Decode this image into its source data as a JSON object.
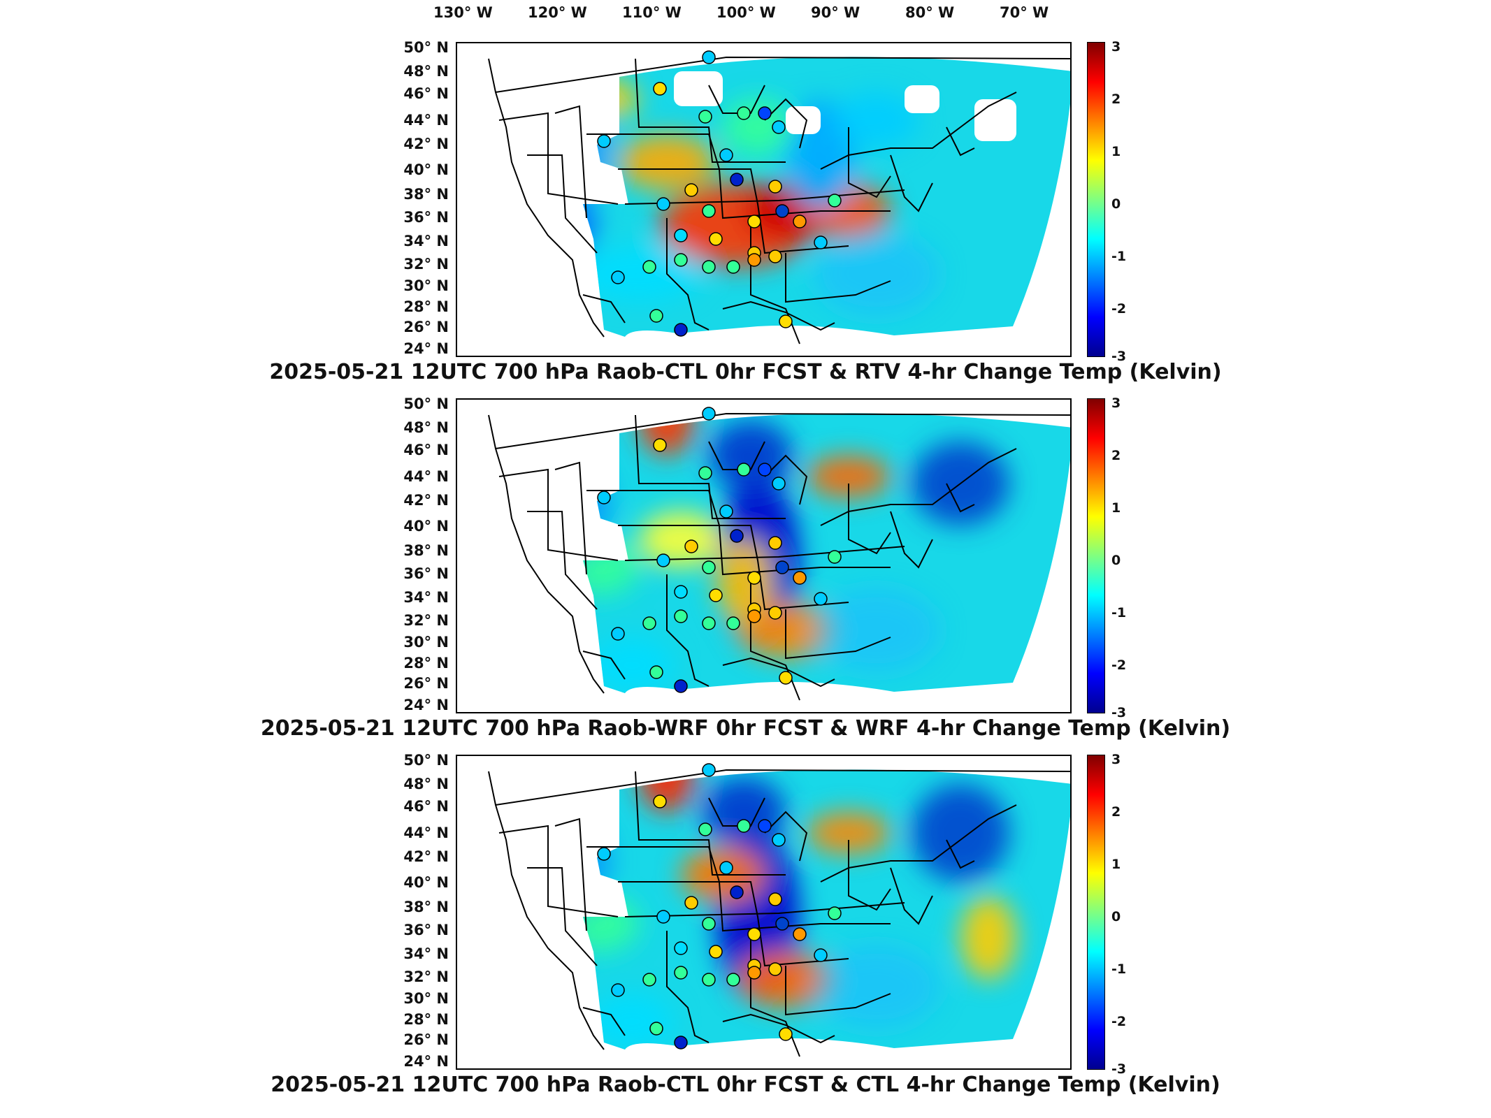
{
  "longitude_labels": [
    "130° W",
    "120° W",
    "110° W",
    "100° W",
    "90° W",
    "80° W",
    "70° W"
  ],
  "latitude_labels": [
    "50° N",
    "48° N",
    "46° N",
    "44° N",
    "42° N",
    "40° N",
    "38° N",
    "36° N",
    "34° N",
    "32° N",
    "30° N",
    "28° N",
    "26° N",
    "24° N"
  ],
  "colorbar": {
    "ticks": [
      "3",
      "2",
      "1",
      "0",
      "-1",
      "-2",
      "-3"
    ],
    "min": -3,
    "max": 3,
    "colormap": "jet"
  },
  "panels": [
    {
      "title": "2025-05-21 12UTC 700 hPa Raob-CTL 0hr FCST & RTV 4-hr Change Temp (Kelvin)"
    },
    {
      "title": "2025-05-21 12UTC 700 hPa Raob-WRF 0hr FCST & WRF 4-hr Change Temp (Kelvin)"
    },
    {
      "title": "2025-05-21 12UTC 700 hPa Raob-CTL 0hr FCST & CTL 4-hr Change Temp (Kelvin)"
    }
  ],
  "colors": {
    "hot": "#ff3300",
    "warm": "#ffcc00",
    "cool": "#00ccff",
    "cold": "#0022cc",
    "neutral": "#40e0c0"
  }
}
